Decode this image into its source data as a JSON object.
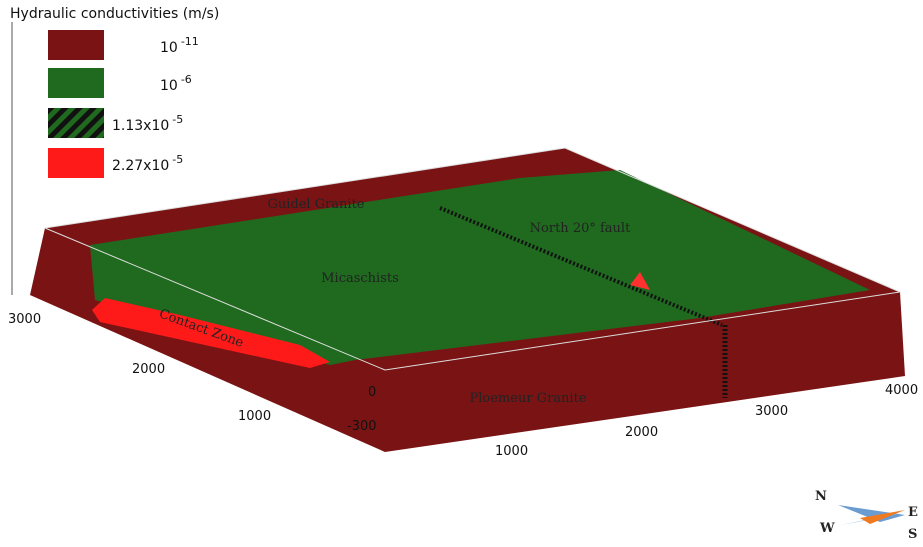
{
  "legend": {
    "title": "Hydraulic conductivities (m/s)",
    "items": [
      {
        "base": "10",
        "exponent": "-11",
        "color": "#7a1414"
      },
      {
        "base": "10",
        "exponent": "-6",
        "color": "#1f6a1f"
      },
      {
        "base": "1.13x10",
        "exponent": "-5",
        "color": "#1f6a1f"
      },
      {
        "base": "2.27x10",
        "exponent": "-5",
        "color": "#ff1a1a"
      }
    ]
  },
  "labels": {
    "guidel": "Guidel Granite",
    "fault": "North 20° fault",
    "micaschists": "Micaschists",
    "contact": "Contact Zone",
    "ploemeur": "Ploemeur Granite"
  },
  "axes": {
    "left": [
      "3000",
      "2000",
      "1000"
    ],
    "depth": [
      "0",
      "-300"
    ],
    "front": [
      "1000",
      "2000",
      "3000",
      "4000"
    ]
  },
  "compass": {
    "n": "N",
    "e": "E",
    "w": "W",
    "s": "S"
  }
}
